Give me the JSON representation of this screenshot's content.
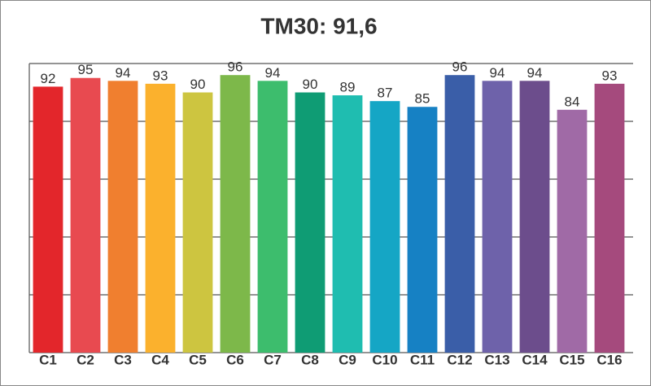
{
  "chart_data": {
    "type": "bar",
    "title": "TM30: 91,6",
    "categories": [
      "C1",
      "C2",
      "C3",
      "C4",
      "C5",
      "C6",
      "C7",
      "C8",
      "C9",
      "C10",
      "C11",
      "C12",
      "C13",
      "C14",
      "C15",
      "C16"
    ],
    "values": [
      92,
      95,
      94,
      93,
      90,
      96,
      94,
      90,
      89,
      87,
      85,
      96,
      94,
      94,
      84,
      93
    ],
    "colors": [
      "#e3262b",
      "#e84a50",
      "#f07f2f",
      "#fbb12d",
      "#cdc540",
      "#7db84a",
      "#3dbd6d",
      "#0f9c74",
      "#1fbdb0",
      "#15a6c5",
      "#1681c4",
      "#3a5ea8",
      "#6e62aa",
      "#6c4d8c",
      "#a06aa6",
      "#a54a7d"
    ],
    "ylim": [
      0,
      100
    ],
    "yticks": [
      0,
      20,
      40,
      60,
      80,
      100
    ],
    "grid": true
  }
}
